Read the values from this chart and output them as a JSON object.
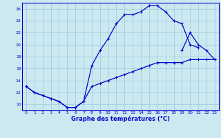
{
  "xlabel": "Graphe des températures (°C)",
  "line1_x": [
    0,
    1,
    2,
    3,
    4,
    5,
    6,
    7,
    8,
    9,
    10,
    11,
    12,
    13,
    14,
    15,
    16,
    17,
    18,
    19,
    20,
    21
  ],
  "line1_y": [
    13,
    12,
    11.5,
    11,
    10.5,
    9.5,
    9.5,
    10.5,
    16.5,
    19,
    21,
    23.5,
    25,
    25,
    25.5,
    26.5,
    26.5,
    25.5,
    24,
    23.5,
    20,
    19.5
  ],
  "line2_x": [
    0,
    1,
    2,
    3,
    4,
    5,
    6,
    7,
    8,
    9,
    10,
    11,
    12,
    13,
    14,
    15,
    16,
    17,
    18,
    19,
    20,
    21,
    22,
    23
  ],
  "line2_y": [
    13,
    12,
    11.5,
    11,
    10.5,
    9.5,
    9.5,
    10.5,
    13,
    13.5,
    14,
    14.5,
    15,
    15.5,
    16,
    16.5,
    17,
    17,
    17,
    17,
    17.5,
    17.5,
    17.5,
    17.5
  ],
  "line3_x": [
    19,
    20,
    21,
    22,
    23
  ],
  "line3_y": [
    19,
    22,
    20,
    19,
    17.5
  ],
  "line_color": "#0000cc",
  "bg_color": "#cce8f0",
  "grid_color": "#99ccdd",
  "ylim": [
    9,
    27
  ],
  "yticks": [
    10,
    12,
    14,
    16,
    18,
    20,
    22,
    24,
    26
  ],
  "xlim": [
    0,
    23
  ],
  "xticks": [
    0,
    1,
    2,
    3,
    4,
    5,
    6,
    7,
    8,
    9,
    10,
    11,
    12,
    13,
    14,
    15,
    16,
    17,
    18,
    19,
    20,
    21,
    22,
    23
  ],
  "figsize": [
    3.2,
    2.0
  ],
  "dpi": 100
}
